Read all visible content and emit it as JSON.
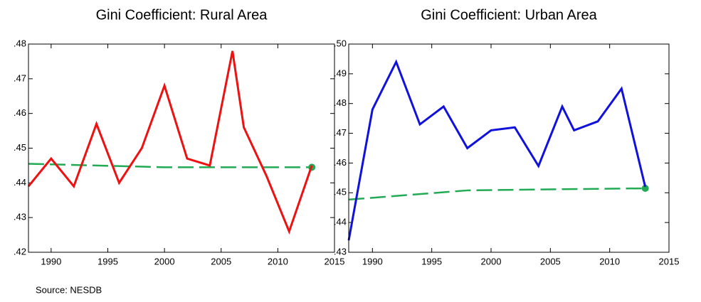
{
  "chart_data": [
    {
      "type": "line",
      "title": "Gini Coefficient: Rural Area",
      "x": [
        1988,
        1990,
        1992,
        1994,
        1996,
        1998,
        2000,
        2002,
        2004,
        2006,
        2007,
        2009,
        2011,
        2013
      ],
      "series": [
        {
          "color": "#ee1111",
          "values": [
            0.439,
            0.447,
            0.439,
            0.457,
            0.44,
            0.45,
            0.468,
            0.447,
            0.445,
            0.478,
            0.456,
            0.442,
            0.426,
            0.445
          ]
        }
      ],
      "trend": {
        "color": "#22aa55",
        "x": [
          1988,
          2000,
          2013
        ],
        "values": [
          0.4455,
          0.4445,
          0.4445
        ]
      },
      "xlim": [
        1988,
        2015
      ],
      "xticks": [
        1990,
        1995,
        2000,
        2005,
        2010,
        2015
      ],
      "ylim": [
        0.42,
        0.48
      ],
      "yticks": [
        {
          "value": 0.42,
          "label": ".42"
        },
        {
          "value": 0.43,
          "label": ".43"
        },
        {
          "value": 0.44,
          "label": ".44"
        },
        {
          "value": 0.45,
          "label": ".45"
        },
        {
          "value": 0.46,
          "label": ".46"
        },
        {
          "value": 0.47,
          "label": ".47"
        },
        {
          "value": 0.48,
          "label": ".48"
        }
      ]
    },
    {
      "type": "line",
      "title": "Gini Coefficient: Urban Area",
      "x": [
        1988,
        1990,
        1992,
        1994,
        1996,
        1998,
        2000,
        2002,
        2004,
        2006,
        2007,
        2009,
        2011,
        2013
      ],
      "series": [
        {
          "color": "#1111dd",
          "values": [
            0.434,
            0.478,
            0.494,
            0.473,
            0.479,
            0.465,
            0.471,
            0.472,
            0.459,
            0.479,
            0.471,
            0.474,
            0.485,
            0.452
          ]
        }
      ],
      "trend": {
        "color": "#22aa55",
        "x": [
          1988,
          1998,
          2006,
          2013
        ],
        "values": [
          0.4477,
          0.4508,
          0.4512,
          0.4515
        ]
      },
      "xlim": [
        1988,
        2015
      ],
      "xticks": [
        1990,
        1995,
        2000,
        2005,
        2010,
        2015
      ],
      "ylim": [
        0.43,
        0.5
      ],
      "yticks": [
        {
          "value": 0.43,
          "label": ".43"
        },
        {
          "value": 0.44,
          "label": ".44"
        },
        {
          "value": 0.45,
          "label": ".45"
        },
        {
          "value": 0.46,
          "label": ".46"
        },
        {
          "value": 0.47,
          "label": ".47"
        },
        {
          "value": 0.48,
          "label": ".48"
        },
        {
          "value": 0.49,
          "label": ".49"
        },
        {
          "value": 0.5,
          "label": ".50"
        }
      ]
    }
  ],
  "source": "Source: NESDB"
}
